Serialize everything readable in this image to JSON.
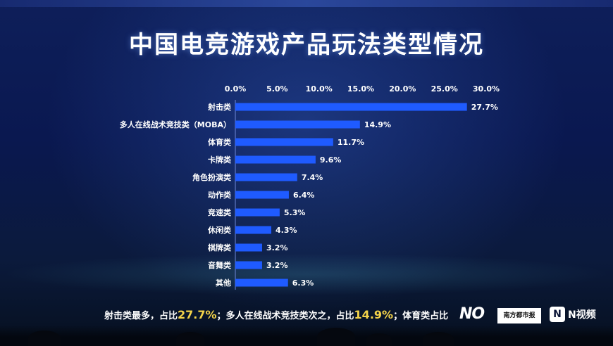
{
  "title": "中国电竞游戏产品玩法类型情况",
  "chart_data": {
    "type": "bar",
    "orientation": "horizontal",
    "title": "中国电竞游戏产品玩法类型情况",
    "categories": [
      "射击类",
      "多人在线战术竞技类（MOBA）",
      "体育类",
      "卡牌类",
      "角色扮演类",
      "动作类",
      "竞速类",
      "休闲类",
      "棋牌类",
      "音舞类",
      "其他"
    ],
    "values": [
      27.7,
      14.9,
      11.7,
      9.6,
      7.4,
      6.4,
      5.3,
      4.3,
      3.2,
      3.2,
      6.3
    ],
    "value_labels": [
      "27.7%",
      "14.9%",
      "11.7%",
      "9.6%",
      "7.4%",
      "6.4%",
      "5.3%",
      "4.3%",
      "3.2%",
      "3.2%",
      "6.3%"
    ],
    "xlim": [
      0,
      30
    ],
    "xticks": [
      0,
      5,
      10,
      15,
      20,
      25,
      30
    ],
    "xtick_labels": [
      "0.0%",
      "5.0%",
      "10.0%",
      "15.0%",
      "20.0%",
      "25.0%",
      "30.0%"
    ],
    "xaxis_position": "top",
    "bar_color": "#1f5bff",
    "grid": false
  },
  "summary": {
    "part1": "射击类最多，占比",
    "value1": "27.7%",
    "part2": "；多人在线战术竞技类次之，占比",
    "value2": "14.9%",
    "part3": "；体育类占比"
  },
  "logos": {
    "logo_a": "NO",
    "logo_b": "南方都市报",
    "logo_n_mark": "N",
    "logo_n_text": "N视频"
  },
  "colors": {
    "bar": "#1f5bff",
    "highlight": "#f4d34a",
    "background": "#0a1436"
  }
}
